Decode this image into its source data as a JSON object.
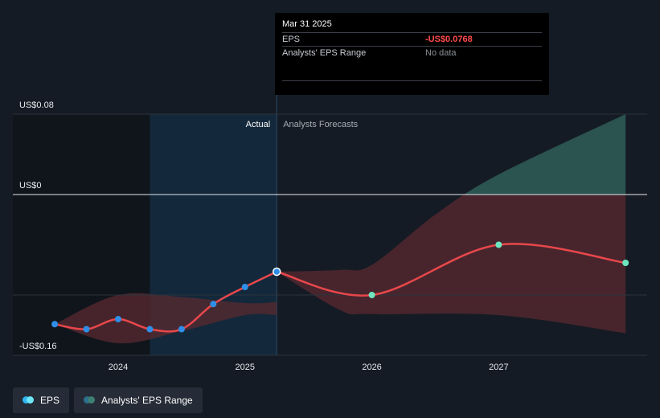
{
  "chart_data": {
    "type": "line",
    "y_tick_labels": [
      "US$0.08",
      "US$0",
      "-US$0.16"
    ],
    "y_ticks": [
      0.08,
      0,
      -0.16
    ],
    "ylim": [
      -0.16,
      0.08
    ],
    "x_ticks": [
      {
        "label": "2024",
        "x": 2024.0
      },
      {
        "label": "2025",
        "x": 2025.0
      },
      {
        "label": "2026",
        "x": 2026.0
      },
      {
        "label": "2027",
        "x": 2027.0
      }
    ],
    "xlim": [
      2023.17,
      2028.17
    ],
    "divider_x": 2025.25,
    "region_labels": {
      "actual": "Actual",
      "forecast": "Analysts Forecasts"
    },
    "series": [
      {
        "name": "EPS",
        "kind": "actual",
        "color": "#e8474b",
        "marker_color": "#2f8fe8",
        "points": [
          [
            2023.5,
            -0.129
          ],
          [
            2023.75,
            -0.134
          ],
          [
            2024.0,
            -0.124
          ],
          [
            2024.25,
            -0.134
          ],
          [
            2024.5,
            -0.134
          ],
          [
            2024.75,
            -0.109
          ],
          [
            2025.0,
            -0.092
          ],
          [
            2025.25,
            -0.0768
          ]
        ]
      },
      {
        "name": "EPS",
        "kind": "forecast",
        "color": "#e8474b",
        "marker_color": "#6ee7c0",
        "points": [
          [
            2025.25,
            -0.0768
          ],
          [
            2026.0,
            -0.1
          ],
          [
            2027.0,
            -0.05
          ],
          [
            2028.0,
            -0.068
          ]
        ]
      }
    ],
    "ranges": [
      {
        "name": "Analysts' EPS Range",
        "kind": "actual",
        "upper": [
          [
            2023.5,
            -0.129
          ],
          [
            2024.0,
            -0.1
          ],
          [
            2024.5,
            -0.102
          ],
          [
            2025.0,
            -0.108
          ],
          [
            2025.25,
            -0.107
          ]
        ],
        "lower": [
          [
            2023.5,
            -0.129
          ],
          [
            2024.0,
            -0.148
          ],
          [
            2024.5,
            -0.136
          ],
          [
            2025.0,
            -0.12
          ],
          [
            2025.25,
            -0.12
          ]
        ]
      },
      {
        "name": "Analysts' EPS Range",
        "kind": "forecast",
        "upper": [
          [
            2025.25,
            -0.0768
          ],
          [
            2025.75,
            -0.075
          ],
          [
            2026.0,
            -0.07
          ],
          [
            2026.5,
            -0.02
          ],
          [
            2027.0,
            0.02
          ],
          [
            2028.0,
            0.08
          ]
        ],
        "lower": [
          [
            2025.25,
            -0.0768
          ],
          [
            2025.75,
            -0.115
          ],
          [
            2026.0,
            -0.119
          ],
          [
            2027.0,
            -0.12
          ],
          [
            2028.0,
            -0.138
          ]
        ]
      }
    ]
  },
  "tooltip": {
    "date": "Mar 31 2025",
    "rows": [
      {
        "label": "EPS",
        "value": "-US$0.0768"
      },
      {
        "label": "Analysts' EPS Range",
        "value": "No data"
      }
    ]
  },
  "legend": [
    {
      "label": "EPS",
      "colors": [
        "#2fb6f2",
        "#6ee7f7"
      ]
    },
    {
      "label": "Analysts' EPS Range",
      "colors": [
        "#2d6f8e",
        "#3d7f72"
      ]
    }
  ]
}
